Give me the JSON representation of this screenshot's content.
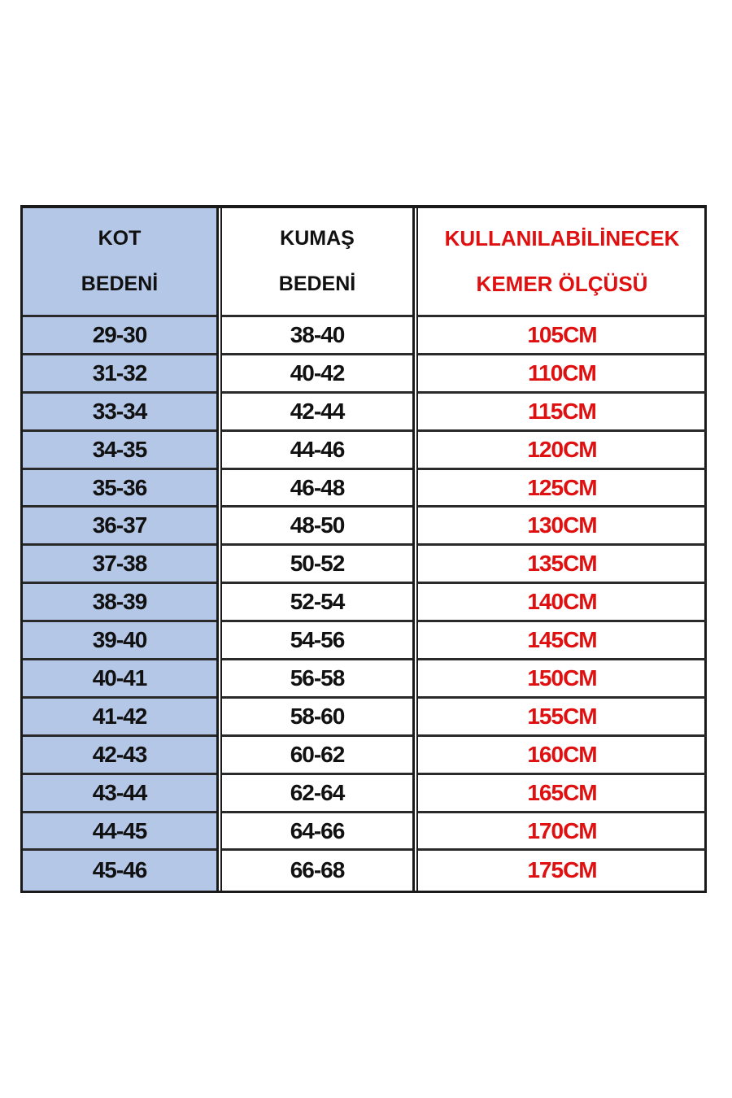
{
  "headers": [
    {
      "line1": "KOT",
      "line2": "BEDENİ"
    },
    {
      "line1": "KUMAŞ",
      "line2": "BEDENİ"
    },
    {
      "line1": "KULLANILABİLİNECEK",
      "line2": "KEMER ÖLÇÜSÜ"
    }
  ],
  "columns": [
    [
      "29-30",
      "31-32",
      "33-34",
      "34-35",
      "35-36",
      "36-37",
      "37-38",
      "38-39",
      "39-40",
      "40-41",
      "41-42",
      "42-43",
      "43-44",
      "44-45",
      "45-46"
    ],
    [
      "38-40",
      "40-42",
      "42-44",
      "44-46",
      "46-48",
      "48-50",
      "50-52",
      "52-54",
      "54-56",
      "56-58",
      "58-60",
      "60-62",
      "62-64",
      "64-66",
      "66-68"
    ],
    [
      "105CM",
      "110CM",
      "115CM",
      "120CM",
      "125CM",
      "130CM",
      "135CM",
      "140CM",
      "145CM",
      "150CM",
      "155CM",
      "160CM",
      "165CM",
      "170CM",
      "175CM"
    ]
  ],
  "colors": {
    "first_column_bg": "#b4c7e7",
    "belt_text": "#e01010",
    "text": "#111111"
  }
}
